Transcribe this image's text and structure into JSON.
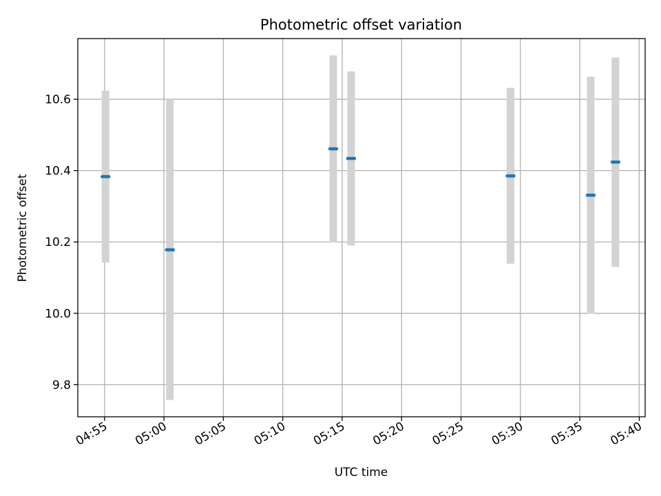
{
  "chart_data": {
    "type": "scatter",
    "title": "Photometric offset variation",
    "xlabel": "UTC time",
    "ylabel": "Photometric offset",
    "xlim": [
      "04:52:45",
      "05:40:30"
    ],
    "ylim": [
      9.71,
      10.77
    ],
    "x_ticks": [
      "04:55",
      "05:00",
      "05:05",
      "05:10",
      "05:15",
      "05:20",
      "05:25",
      "05:30",
      "05:35",
      "05:40"
    ],
    "y_ticks": [
      "9.8",
      "10.0",
      "10.2",
      "10.4",
      "10.6"
    ],
    "grid": true,
    "legend": "none",
    "points": [
      {
        "time": "04:55:05",
        "value": 10.383,
        "low": 10.142,
        "high": 10.624
      },
      {
        "time": "05:00:30",
        "value": 10.178,
        "low": 9.757,
        "high": 10.602
      },
      {
        "time": "05:14:15",
        "value": 10.461,
        "low": 10.199,
        "high": 10.723
      },
      {
        "time": "05:15:45",
        "value": 10.434,
        "low": 10.19,
        "high": 10.678
      },
      {
        "time": "05:29:10",
        "value": 10.385,
        "low": 10.139,
        "high": 10.632
      },
      {
        "time": "05:35:55",
        "value": 10.331,
        "low": 9.999,
        "high": 10.663
      },
      {
        "time": "05:38:00",
        "value": 10.424,
        "low": 10.13,
        "high": 10.717
      }
    ],
    "colors": {
      "marker": "#1f77b4",
      "errorbar": "#d3d3d3",
      "grid": "#b0b0b0",
      "axis": "#000000"
    }
  }
}
